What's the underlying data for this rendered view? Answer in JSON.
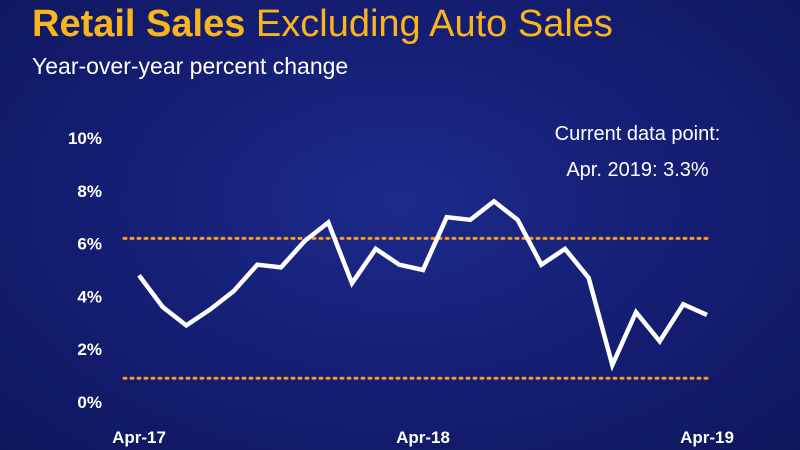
{
  "header": {
    "title_bold": "Retail Sales",
    "title_rest": " Excluding Auto Sales",
    "subtitle": "Year-over-year percent change"
  },
  "annotation": {
    "line1": "Current data point:",
    "line2": "Apr. 2019: 3.3%"
  },
  "colors": {
    "title": "#f9b51b",
    "line": "#ffffff",
    "reference_lines": "#f39a2b",
    "background": "#141d72"
  },
  "chart_data": {
    "type": "line",
    "title": "Retail Sales Excluding Auto Sales",
    "subtitle": "Year-over-year percent change",
    "xlabel": "",
    "ylabel": "",
    "ylim": [
      0,
      10
    ],
    "yticks": [
      "0%",
      "2%",
      "4%",
      "6%",
      "8%",
      "10%"
    ],
    "ytick_values": [
      0,
      2,
      4,
      6,
      8,
      10
    ],
    "xtick_labels": [
      "Apr-17",
      "Apr-18",
      "Apr-19"
    ],
    "xtick_indices": [
      0,
      12,
      24
    ],
    "grid": false,
    "series": [
      {
        "x": [
          "Apr-17",
          "May-17",
          "Jun-17",
          "Jul-17",
          "Aug-17",
          "Sep-17",
          "Oct-17",
          "Nov-17",
          "Dec-17",
          "Jan-18",
          "Feb-18",
          "Mar-18",
          "Apr-18",
          "May-18",
          "Jun-18",
          "Jul-18",
          "Aug-18",
          "Sep-18",
          "Oct-18",
          "Nov-18",
          "Dec-18",
          "Jan-19",
          "Feb-19",
          "Mar-19",
          "Apr-19"
        ],
        "values": [
          4.8,
          3.6,
          2.9,
          3.5,
          4.2,
          5.2,
          5.1,
          6.1,
          6.8,
          4.5,
          5.8,
          5.2,
          5.0,
          7.0,
          6.9,
          7.6,
          6.9,
          5.2,
          5.8,
          4.7,
          1.4,
          3.4,
          2.3,
          3.7,
          3.3
        ]
      }
    ],
    "reference_lines": [
      {
        "y": 6.2,
        "style": "dotted"
      },
      {
        "y": 0.9,
        "style": "dotted"
      }
    ]
  }
}
